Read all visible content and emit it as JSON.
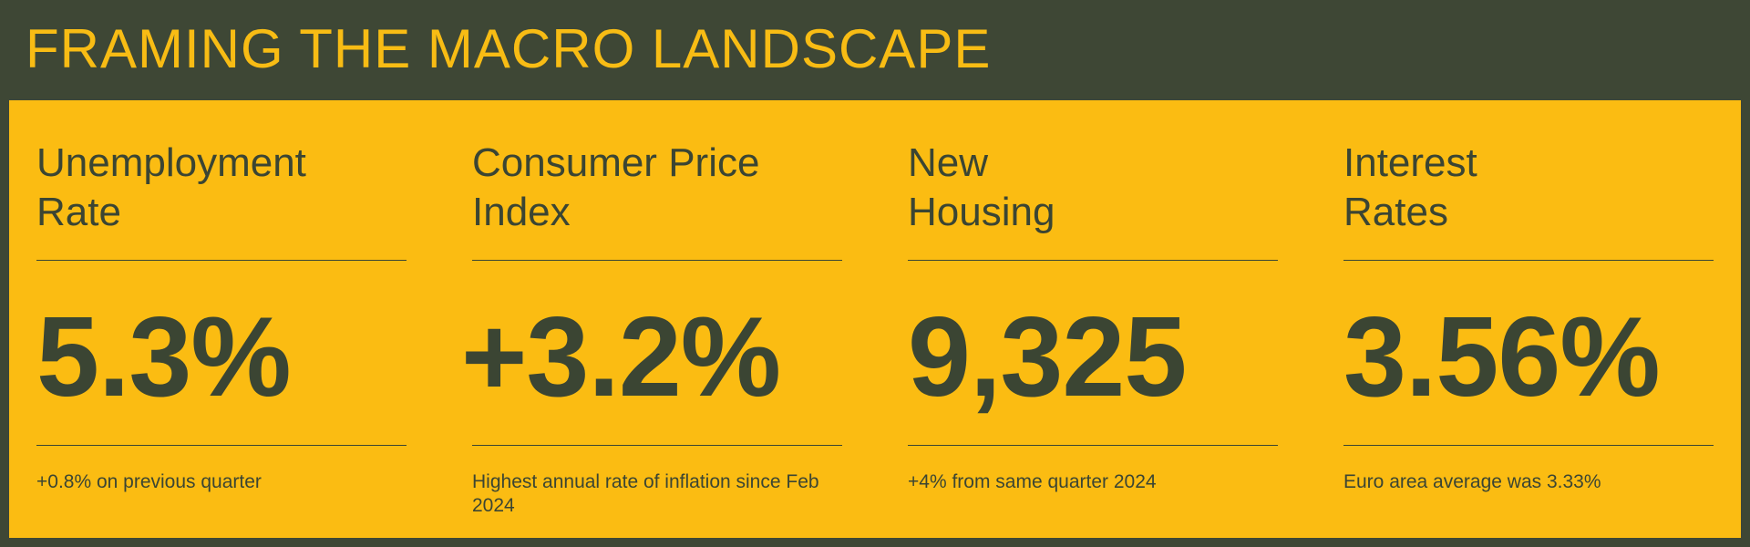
{
  "header": {
    "title": "FRAMING THE MACRO LANDSCAPE"
  },
  "stats": [
    {
      "label": "Unemployment\nRate",
      "value": "5.3%",
      "note": "+0.8% on previous quarter"
    },
    {
      "label": "Consumer Price\nIndex",
      "value": "+3.2%",
      "note": "Highest annual rate of inflation since Feb 2024"
    },
    {
      "label": "New\nHousing",
      "value": "9,325",
      "note": "+4% from same quarter 2024"
    },
    {
      "label": "Interest\nRates",
      "value": "3.56%",
      "note": "Euro area average was 3.33%"
    }
  ],
  "colors": {
    "background": "#3e4735",
    "accent": "#fbbc12",
    "text_dark": "#3b4533"
  }
}
